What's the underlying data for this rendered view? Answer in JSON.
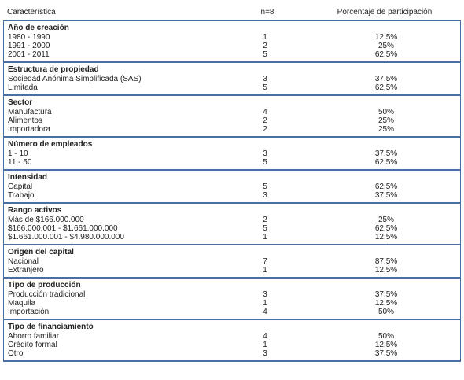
{
  "header": {
    "col1": "Característica",
    "col2": "n=8",
    "col3": "Porcentaje de participación"
  },
  "sections": [
    {
      "title": "Año de creación",
      "rows": [
        {
          "label": "1980 - 1990",
          "n": "1",
          "pct": "12,5%"
        },
        {
          "label": "1991 - 2000",
          "n": "2",
          "pct": "25%"
        },
        {
          "label": "2001 - 2011",
          "n": "5",
          "pct": "62,5%"
        }
      ]
    },
    {
      "title": "Estructura de propiedad",
      "rows": [
        {
          "label": "Sociedad Anónima Simplificada (SAS)",
          "n": "3",
          "pct": "37,5%"
        },
        {
          "label": "Limitada",
          "n": "5",
          "pct": "62,5%"
        }
      ]
    },
    {
      "title": "Sector",
      "rows": [
        {
          "label": "Manufactura",
          "n": "4",
          "pct": "50%"
        },
        {
          "label": "Alimentos",
          "n": "2",
          "pct": "25%"
        },
        {
          "label": "Importadora",
          "n": "2",
          "pct": "25%"
        }
      ]
    },
    {
      "title": "Número de empleados",
      "rows": [
        {
          "label": "1 - 10",
          "n": "3",
          "pct": "37,5%"
        },
        {
          "label": "11 - 50",
          "n": "5",
          "pct": "62,5%"
        }
      ]
    },
    {
      "title": "Intensidad",
      "rows": [
        {
          "label": "Capital",
          "n": "5",
          "pct": "62,5%"
        },
        {
          "label": "Trabajo",
          "n": "3",
          "pct": "37,5%"
        }
      ]
    },
    {
      "title": "Rango activos",
      "rows": [
        {
          "label": "Más de $166.000.000",
          "n": "2",
          "pct": "25%"
        },
        {
          "label": "$166.000.001 - $1.661.000.000",
          "n": "5",
          "pct": "62,5%"
        },
        {
          "label": "$1.661.000.001 - $4.980.000.000",
          "n": "1",
          "pct": "12,5%"
        }
      ]
    },
    {
      "title": "Origen del capital",
      "rows": [
        {
          "label": "Nacional",
          "n": "7",
          "pct": "87,5%"
        },
        {
          "label": "Extranjero",
          "n": "1",
          "pct": "12,5%"
        }
      ]
    },
    {
      "title": "Tipo de producción",
      "rows": [
        {
          "label": "Producción tradicional",
          "n": "3",
          "pct": "37,5%"
        },
        {
          "label": "Maquila",
          "n": "1",
          "pct": "12,5%"
        },
        {
          "label": "Importación",
          "n": "4",
          "pct": "50%"
        }
      ]
    },
    {
      "title": "Tipo de financiamiento",
      "rows": [
        {
          "label": "Ahorro familiar",
          "n": "4",
          "pct": "50%"
        },
        {
          "label": "Crédito formal",
          "n": "1",
          "pct": "12,5%"
        },
        {
          "label": "Otro",
          "n": "3",
          "pct": "37,5%"
        }
      ]
    }
  ],
  "colors": {
    "border": "#4a6fa5"
  }
}
